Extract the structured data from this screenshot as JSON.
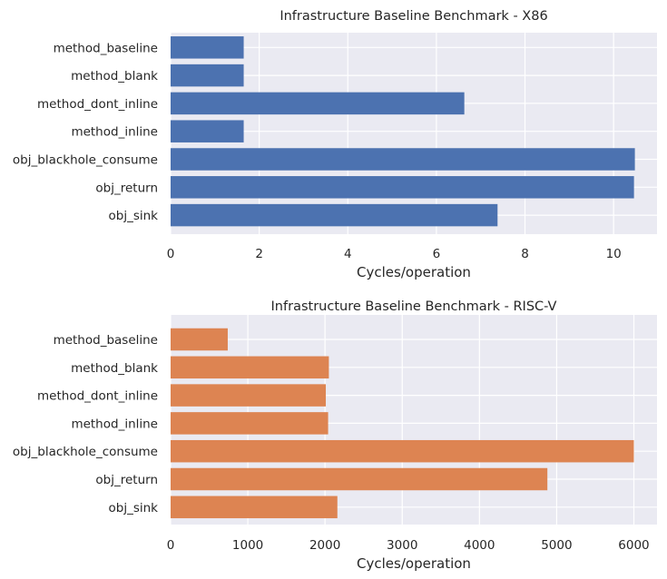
{
  "chart_data": [
    {
      "type": "bar",
      "orientation": "horizontal",
      "title": "Infrastructure Baseline Benchmark - X86",
      "xlabel": "Cycles/operation",
      "ylabel": "",
      "categories": [
        "method_baseline",
        "method_blank",
        "method_dont_inline",
        "method_inline",
        "obj_blackhole_consume",
        "obj_return",
        "obj_sink"
      ],
      "values": [
        1.65,
        1.65,
        6.63,
        1.65,
        10.48,
        10.46,
        7.38
      ],
      "xlim": [
        0,
        10.98
      ],
      "xticks": [
        0,
        2,
        4,
        6,
        8,
        10
      ],
      "xtick_labels": [
        "0",
        "2",
        "4",
        "6",
        "8",
        "10"
      ],
      "grid": true,
      "color": "#4c72b0"
    },
    {
      "type": "bar",
      "orientation": "horizontal",
      "title": "Infrastructure Baseline Benchmark - RISC-V",
      "xlabel": "Cycles/operation",
      "ylabel": "",
      "categories": [
        "method_baseline",
        "method_blank",
        "method_dont_inline",
        "method_inline",
        "obj_blackhole_consume",
        "obj_return",
        "obj_sink"
      ],
      "values": [
        740,
        2050,
        2010,
        2040,
        6000,
        4880,
        2160
      ],
      "xlim": [
        0,
        6300
      ],
      "xticks": [
        0,
        1000,
        2000,
        3000,
        4000,
        5000,
        6000
      ],
      "xtick_labels": [
        "0",
        "1000",
        "2000",
        "3000",
        "4000",
        "5000",
        "6000"
      ],
      "grid": true,
      "color": "#dd8452"
    }
  ]
}
